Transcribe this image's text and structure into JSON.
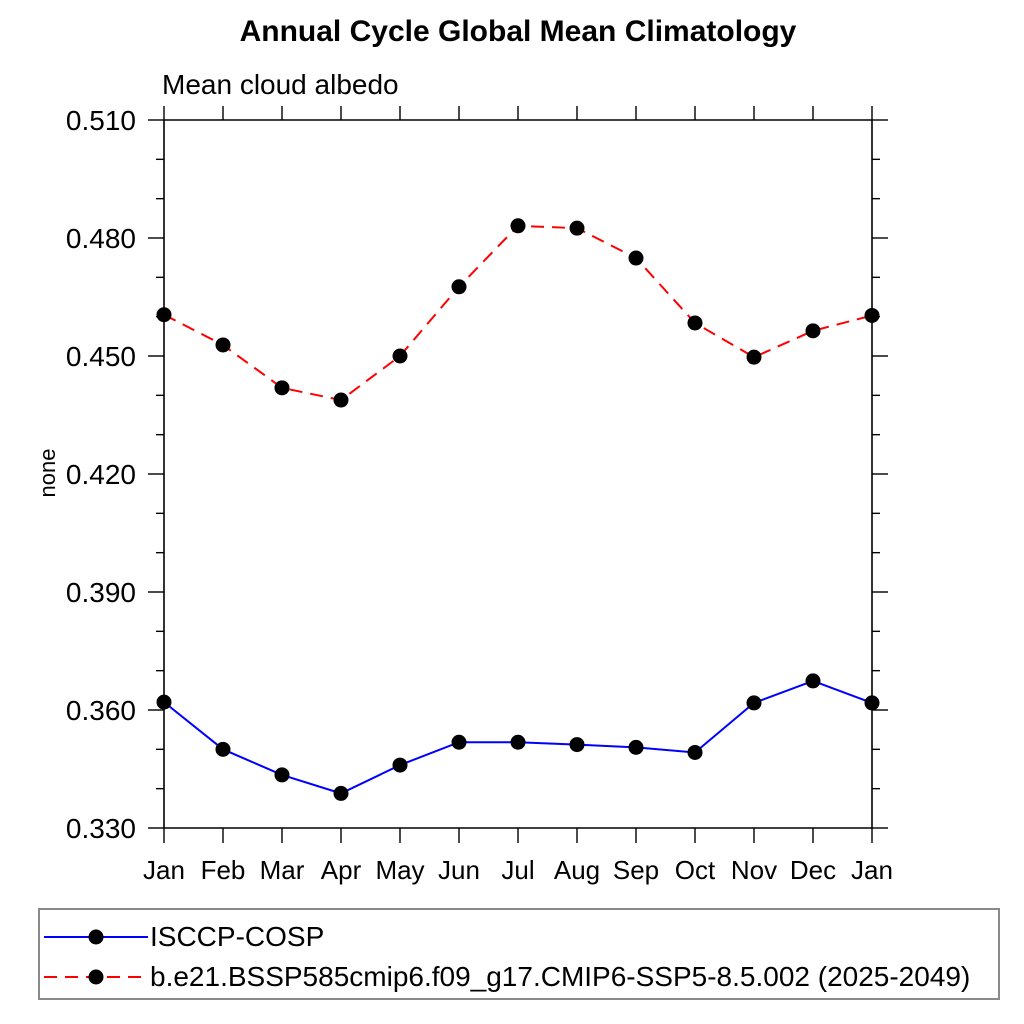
{
  "chart_data": {
    "type": "line",
    "title": "Annual Cycle Global Mean Climatology",
    "subtitle": "Mean cloud albedo",
    "ylabel": "none",
    "xlabel": "",
    "categories": [
      "Jan",
      "Feb",
      "Mar",
      "Apr",
      "May",
      "Jun",
      "Jul",
      "Aug",
      "Sep",
      "Oct",
      "Nov",
      "Dec",
      "Jan"
    ],
    "ylim": [
      0.33,
      0.51
    ],
    "ytick_major": [
      0.33,
      0.36,
      0.39,
      0.42,
      0.45,
      0.48,
      0.51
    ],
    "ytick_major_labels": [
      "0.330",
      "0.360",
      "0.390",
      "0.420",
      "0.450",
      "0.480",
      "0.510"
    ],
    "ytick_minor_step": 0.01,
    "grid": false,
    "legend_position": "bottom",
    "axis_color": "#000000",
    "marker": "filled-circle",
    "marker_color": "#000000",
    "series": [
      {
        "name": "ISCCP-COSP",
        "color": "#0000ff",
        "line_style": "solid",
        "values": [
          0.362,
          0.35,
          0.3435,
          0.3388,
          0.346,
          0.3518,
          0.3518,
          0.3512,
          0.3505,
          0.3492,
          0.3618,
          0.3674,
          0.3618
        ]
      },
      {
        "name": "b.e21.BSSP585cmip6.f09_g17.CMIP6-SSP5-8.5.002 (2025-2049)",
        "color": "#ff0000",
        "line_style": "dashed",
        "values": [
          0.4605,
          0.4528,
          0.4419,
          0.4388,
          0.45,
          0.4676,
          0.4831,
          0.4825,
          0.4749,
          0.4584,
          0.4497,
          0.4564,
          0.4603
        ]
      }
    ]
  }
}
